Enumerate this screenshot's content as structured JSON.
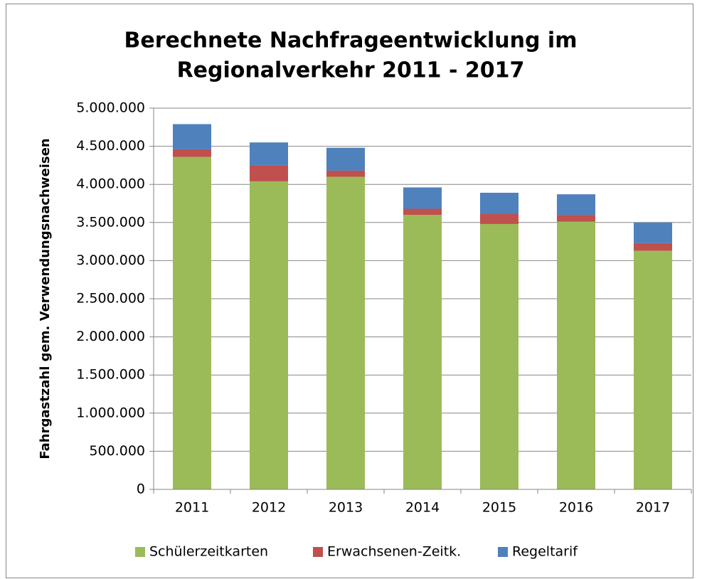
{
  "chart_data": {
    "type": "stacked_bar",
    "title": [
      "Berechnete Nachfrageentwicklung im",
      "Regionalverkehr 2011 - 2017"
    ],
    "y_label": "Fahrgastzahl gem. Verwendungsnachweisen",
    "categories": [
      "2011",
      "2012",
      "2013",
      "2014",
      "2015",
      "2016",
      "2017"
    ],
    "series": [
      {
        "name": "Schülerzeitkarten",
        "color": "#9bbb59",
        "values": [
          4360000,
          4040000,
          4100000,
          3600000,
          3480000,
          3510000,
          3130000
        ]
      },
      {
        "name": "Erwachsenen-Zeitk.",
        "color": "#c0504d",
        "values": [
          100000,
          210000,
          80000,
          80000,
          130000,
          90000,
          100000
        ]
      },
      {
        "name": "Regeltarif",
        "color": "#4f81bd",
        "values": [
          330000,
          300000,
          300000,
          280000,
          280000,
          270000,
          270000
        ]
      }
    ],
    "ylim": [
      0,
      5000000
    ],
    "yticks": [
      0,
      {
        "value": 500000,
        "label": "500.000"
      },
      {
        "value": 1000000,
        "label": "1.000.000"
      },
      {
        "value": 1500000,
        "label": "1.500.000"
      },
      {
        "value": 2000000,
        "label": "2.000.000"
      },
      {
        "value": 2500000,
        "label": "2.500.000"
      },
      {
        "value": 3000000,
        "label": "3.000.000"
      },
      {
        "value": 3500000,
        "label": "3.500.000"
      },
      {
        "value": 4000000,
        "label": "4.000.000"
      },
      {
        "value": 4500000,
        "label": "4.500.000"
      },
      {
        "value": 5000000,
        "label": "5.000.000"
      }
    ],
    "grid": true,
    "legend": "bottom"
  }
}
